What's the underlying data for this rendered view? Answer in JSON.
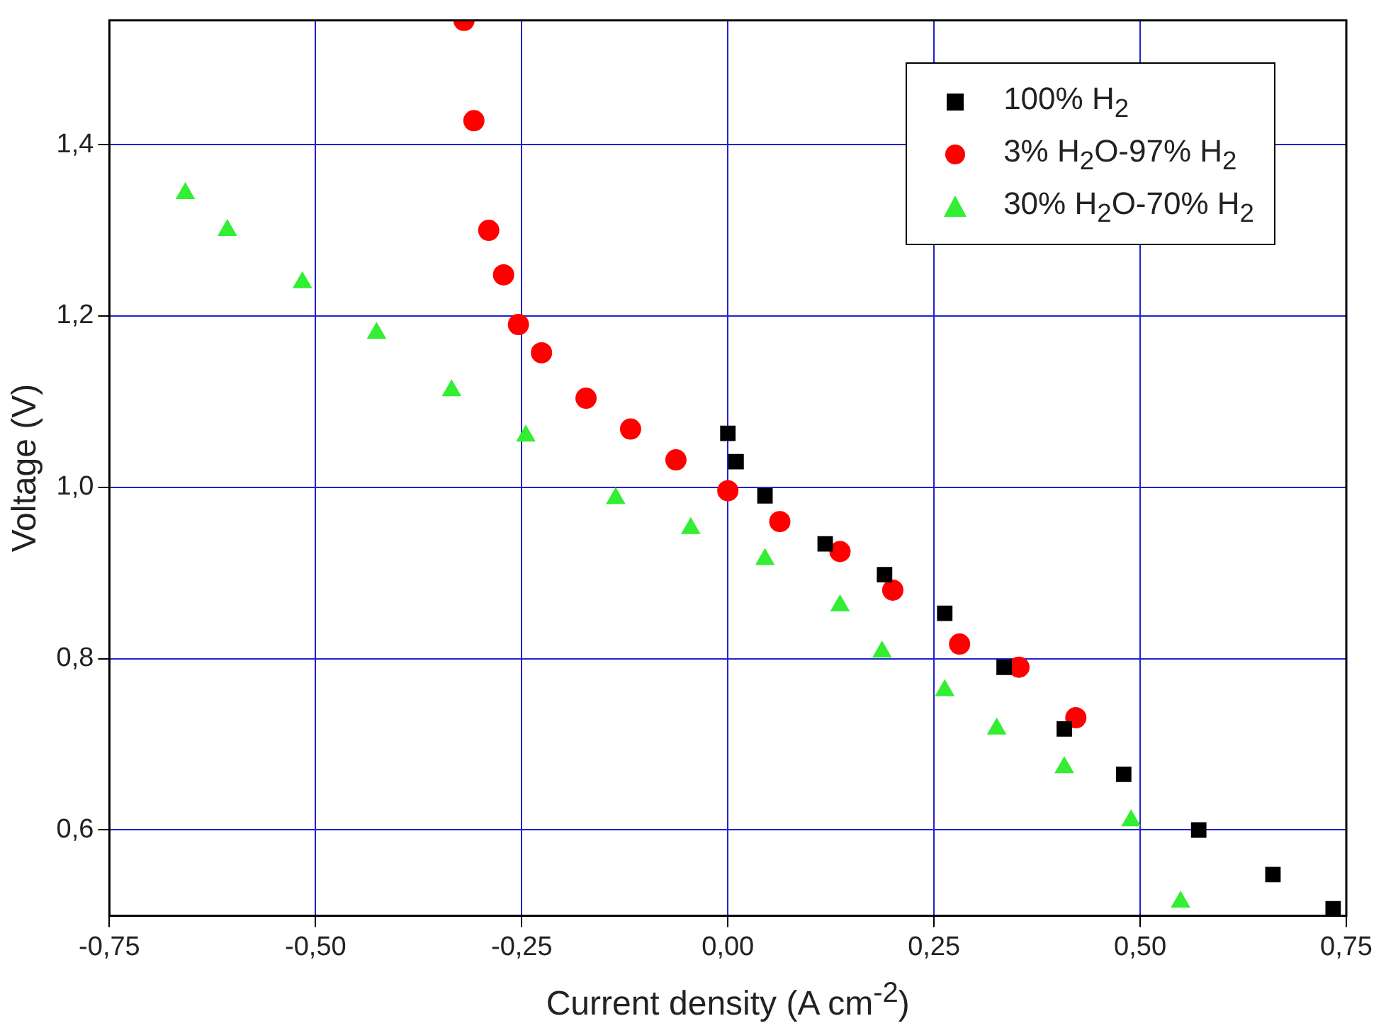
{
  "chart_data": {
    "type": "scatter",
    "xlabel": "Current density (A cm$^{-2}$)",
    "ylabel": "Voltage (V)",
    "xlim": [
      -0.75,
      0.75
    ],
    "ylim": [
      0.5,
      1.545
    ],
    "xticks": [
      {
        "value": -0.75,
        "label": "-0,75"
      },
      {
        "value": -0.5,
        "label": "-0,50"
      },
      {
        "value": -0.25,
        "label": "-0,25"
      },
      {
        "value": 0,
        "label": "0,00"
      },
      {
        "value": 0.25,
        "label": "0,25"
      },
      {
        "value": 0.5,
        "label": "0,50"
      },
      {
        "value": 0.75,
        "label": "0,75"
      }
    ],
    "yticks": [
      {
        "value": 0.6,
        "label": "0,6"
      },
      {
        "value": 0.8,
        "label": "0,8"
      },
      {
        "value": 1.0,
        "label": "1,0"
      },
      {
        "value": 1.2,
        "label": "1,2"
      },
      {
        "value": 1.4,
        "label": "1,4"
      }
    ],
    "grid": true,
    "legend": "top right",
    "series": [
      {
        "name": "100% H$_{2}$",
        "color": "#000000",
        "marker": "square",
        "x": [
          0,
          0.01,
          0.045,
          0.118,
          0.19,
          0.263,
          0.335,
          0.408,
          0.48,
          0.571,
          0.661,
          0.734
        ],
        "values": [
          1.063,
          1.03,
          0.99,
          0.934,
          0.898,
          0.853,
          0.79,
          0.718,
          0.665,
          0.6,
          0.548,
          0.508
        ]
      },
      {
        "name": "3% H$_{2}$O-97% H$_{2}$",
        "color": "#ff0000",
        "marker": "circle",
        "x": [
          -0.32,
          -0.308,
          -0.29,
          -0.272,
          -0.254,
          -0.226,
          -0.172,
          -0.118,
          -0.063,
          0,
          0.063,
          0.136,
          0.2,
          0.281,
          0.353,
          0.422
        ],
        "values": [
          1.545,
          1.428,
          1.3,
          1.248,
          1.19,
          1.157,
          1.104,
          1.068,
          1.032,
          0.996,
          0.96,
          0.925,
          0.88,
          0.817,
          0.79,
          0.731
        ]
      },
      {
        "name": "30% H$_{2}$O-70% H$_{2}$",
        "color": "#33ee33",
        "marker": "triangle",
        "x": [
          -0.658,
          -0.607,
          -0.516,
          -0.426,
          -0.335,
          -0.245,
          -0.136,
          -0.045,
          0.045,
          0.136,
          0.187,
          0.263,
          0.326,
          0.408,
          0.489,
          0.549
        ],
        "values": [
          1.343,
          1.3,
          1.239,
          1.18,
          1.113,
          1.06,
          0.987,
          0.952,
          0.916,
          0.862,
          0.808,
          0.763,
          0.718,
          0.673,
          0.611,
          0.516
        ]
      }
    ]
  }
}
